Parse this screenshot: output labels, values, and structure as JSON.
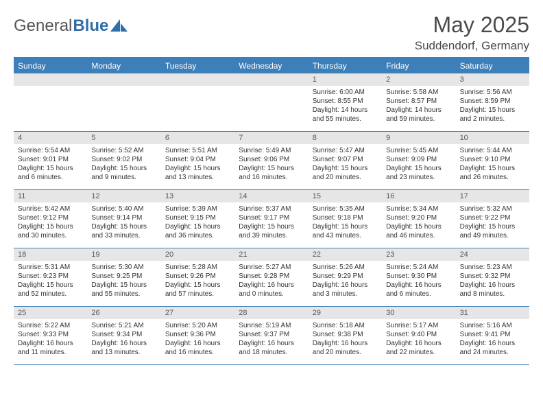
{
  "logo": {
    "part1": "General",
    "part2": "Blue"
  },
  "title": "May 2025",
  "location": "Suddendorf, Germany",
  "weekdays": [
    "Sunday",
    "Monday",
    "Tuesday",
    "Wednesday",
    "Thursday",
    "Friday",
    "Saturday"
  ],
  "colors": {
    "header_bg": "#3d7fb8",
    "header_text": "#ffffff",
    "daynum_bg": "#e6e6e6",
    "border": "#3d7fb8",
    "text": "#333333",
    "logo_blue": "#2f6ea8"
  },
  "weeks": [
    [
      {
        "n": "",
        "sunrise": "",
        "sunset": "",
        "daylight": ""
      },
      {
        "n": "",
        "sunrise": "",
        "sunset": "",
        "daylight": ""
      },
      {
        "n": "",
        "sunrise": "",
        "sunset": "",
        "daylight": ""
      },
      {
        "n": "",
        "sunrise": "",
        "sunset": "",
        "daylight": ""
      },
      {
        "n": "1",
        "sunrise": "Sunrise: 6:00 AM",
        "sunset": "Sunset: 8:55 PM",
        "daylight": "Daylight: 14 hours and 55 minutes."
      },
      {
        "n": "2",
        "sunrise": "Sunrise: 5:58 AM",
        "sunset": "Sunset: 8:57 PM",
        "daylight": "Daylight: 14 hours and 59 minutes."
      },
      {
        "n": "3",
        "sunrise": "Sunrise: 5:56 AM",
        "sunset": "Sunset: 8:59 PM",
        "daylight": "Daylight: 15 hours and 2 minutes."
      }
    ],
    [
      {
        "n": "4",
        "sunrise": "Sunrise: 5:54 AM",
        "sunset": "Sunset: 9:01 PM",
        "daylight": "Daylight: 15 hours and 6 minutes."
      },
      {
        "n": "5",
        "sunrise": "Sunrise: 5:52 AM",
        "sunset": "Sunset: 9:02 PM",
        "daylight": "Daylight: 15 hours and 9 minutes."
      },
      {
        "n": "6",
        "sunrise": "Sunrise: 5:51 AM",
        "sunset": "Sunset: 9:04 PM",
        "daylight": "Daylight: 15 hours and 13 minutes."
      },
      {
        "n": "7",
        "sunrise": "Sunrise: 5:49 AM",
        "sunset": "Sunset: 9:06 PM",
        "daylight": "Daylight: 15 hours and 16 minutes."
      },
      {
        "n": "8",
        "sunrise": "Sunrise: 5:47 AM",
        "sunset": "Sunset: 9:07 PM",
        "daylight": "Daylight: 15 hours and 20 minutes."
      },
      {
        "n": "9",
        "sunrise": "Sunrise: 5:45 AM",
        "sunset": "Sunset: 9:09 PM",
        "daylight": "Daylight: 15 hours and 23 minutes."
      },
      {
        "n": "10",
        "sunrise": "Sunrise: 5:44 AM",
        "sunset": "Sunset: 9:10 PM",
        "daylight": "Daylight: 15 hours and 26 minutes."
      }
    ],
    [
      {
        "n": "11",
        "sunrise": "Sunrise: 5:42 AM",
        "sunset": "Sunset: 9:12 PM",
        "daylight": "Daylight: 15 hours and 30 minutes."
      },
      {
        "n": "12",
        "sunrise": "Sunrise: 5:40 AM",
        "sunset": "Sunset: 9:14 PM",
        "daylight": "Daylight: 15 hours and 33 minutes."
      },
      {
        "n": "13",
        "sunrise": "Sunrise: 5:39 AM",
        "sunset": "Sunset: 9:15 PM",
        "daylight": "Daylight: 15 hours and 36 minutes."
      },
      {
        "n": "14",
        "sunrise": "Sunrise: 5:37 AM",
        "sunset": "Sunset: 9:17 PM",
        "daylight": "Daylight: 15 hours and 39 minutes."
      },
      {
        "n": "15",
        "sunrise": "Sunrise: 5:35 AM",
        "sunset": "Sunset: 9:18 PM",
        "daylight": "Daylight: 15 hours and 43 minutes."
      },
      {
        "n": "16",
        "sunrise": "Sunrise: 5:34 AM",
        "sunset": "Sunset: 9:20 PM",
        "daylight": "Daylight: 15 hours and 46 minutes."
      },
      {
        "n": "17",
        "sunrise": "Sunrise: 5:32 AM",
        "sunset": "Sunset: 9:22 PM",
        "daylight": "Daylight: 15 hours and 49 minutes."
      }
    ],
    [
      {
        "n": "18",
        "sunrise": "Sunrise: 5:31 AM",
        "sunset": "Sunset: 9:23 PM",
        "daylight": "Daylight: 15 hours and 52 minutes."
      },
      {
        "n": "19",
        "sunrise": "Sunrise: 5:30 AM",
        "sunset": "Sunset: 9:25 PM",
        "daylight": "Daylight: 15 hours and 55 minutes."
      },
      {
        "n": "20",
        "sunrise": "Sunrise: 5:28 AM",
        "sunset": "Sunset: 9:26 PM",
        "daylight": "Daylight: 15 hours and 57 minutes."
      },
      {
        "n": "21",
        "sunrise": "Sunrise: 5:27 AM",
        "sunset": "Sunset: 9:28 PM",
        "daylight": "Daylight: 16 hours and 0 minutes."
      },
      {
        "n": "22",
        "sunrise": "Sunrise: 5:26 AM",
        "sunset": "Sunset: 9:29 PM",
        "daylight": "Daylight: 16 hours and 3 minutes."
      },
      {
        "n": "23",
        "sunrise": "Sunrise: 5:24 AM",
        "sunset": "Sunset: 9:30 PM",
        "daylight": "Daylight: 16 hours and 6 minutes."
      },
      {
        "n": "24",
        "sunrise": "Sunrise: 5:23 AM",
        "sunset": "Sunset: 9:32 PM",
        "daylight": "Daylight: 16 hours and 8 minutes."
      }
    ],
    [
      {
        "n": "25",
        "sunrise": "Sunrise: 5:22 AM",
        "sunset": "Sunset: 9:33 PM",
        "daylight": "Daylight: 16 hours and 11 minutes."
      },
      {
        "n": "26",
        "sunrise": "Sunrise: 5:21 AM",
        "sunset": "Sunset: 9:34 PM",
        "daylight": "Daylight: 16 hours and 13 minutes."
      },
      {
        "n": "27",
        "sunrise": "Sunrise: 5:20 AM",
        "sunset": "Sunset: 9:36 PM",
        "daylight": "Daylight: 16 hours and 16 minutes."
      },
      {
        "n": "28",
        "sunrise": "Sunrise: 5:19 AM",
        "sunset": "Sunset: 9:37 PM",
        "daylight": "Daylight: 16 hours and 18 minutes."
      },
      {
        "n": "29",
        "sunrise": "Sunrise: 5:18 AM",
        "sunset": "Sunset: 9:38 PM",
        "daylight": "Daylight: 16 hours and 20 minutes."
      },
      {
        "n": "30",
        "sunrise": "Sunrise: 5:17 AM",
        "sunset": "Sunset: 9:40 PM",
        "daylight": "Daylight: 16 hours and 22 minutes."
      },
      {
        "n": "31",
        "sunrise": "Sunrise: 5:16 AM",
        "sunset": "Sunset: 9:41 PM",
        "daylight": "Daylight: 16 hours and 24 minutes."
      }
    ]
  ]
}
